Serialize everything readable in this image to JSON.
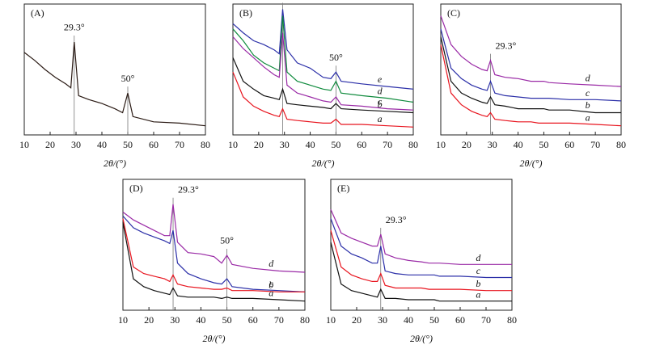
{
  "chart_data": [
    {
      "type": "line",
      "title": "(A)",
      "xlabel": "2θ/(°)",
      "xlim": [
        10,
        80
      ],
      "xticks": [
        10,
        20,
        30,
        40,
        50,
        60,
        70,
        80
      ],
      "ylim": [
        0,
        100
      ],
      "x": [
        10,
        14,
        18,
        22,
        26,
        28,
        29.3,
        31,
        35,
        40,
        45,
        48,
        50,
        52,
        60,
        70,
        80
      ],
      "values": [
        63,
        57,
        50,
        44,
        39,
        36,
        71,
        30,
        27,
        24,
        20,
        17,
        32,
        14,
        10,
        9,
        7
      ],
      "color": "#2a1a14",
      "annotations": [
        {
          "text": "29.3°",
          "x": 29.3
        },
        {
          "text": "50°",
          "x": 50
        }
      ]
    },
    {
      "type": "line",
      "title": "(B)",
      "xlabel": "2θ/(°)",
      "xlim": [
        10,
        80
      ],
      "xticks": [
        10,
        20,
        30,
        40,
        50,
        60,
        70,
        80
      ],
      "ylim": [
        0,
        100
      ],
      "x": [
        10,
        14,
        18,
        22,
        26,
        28,
        29.3,
        31,
        35,
        40,
        45,
        48,
        50,
        52,
        60,
        70,
        80
      ],
      "series": [
        {
          "name": "e",
          "color": "#2b2fa8",
          "values": [
            85,
            78,
            72,
            69,
            65,
            62,
            96,
            65,
            55,
            51,
            44,
            43,
            48,
            41,
            39,
            37,
            35
          ]
        },
        {
          "name": "d",
          "color": "#0e8a3c",
          "values": [
            81,
            72,
            61,
            55,
            51,
            49,
            91,
            48,
            41,
            38,
            35,
            34,
            41,
            32,
            30,
            28,
            25
          ]
        },
        {
          "name": "c",
          "color": "#9a2aa6",
          "values": [
            75,
            66,
            59,
            52,
            46,
            44,
            78,
            38,
            32,
            29,
            26,
            25,
            29,
            23,
            22,
            20,
            19
          ]
        },
        {
          "name": "b",
          "color": "#111111",
          "values": [
            59,
            41,
            35,
            30,
            28,
            27,
            35,
            24,
            23,
            22,
            21,
            20,
            24,
            20,
            19,
            18,
            17
          ]
        },
        {
          "name": "a",
          "color": "#e8141e",
          "values": [
            48,
            29,
            22,
            18,
            15,
            14,
            20,
            12,
            11,
            10,
            9,
            9,
            12,
            8,
            8,
            7,
            6
          ]
        }
      ],
      "annotations": [
        {
          "text": "29.3°",
          "x": 29.3
        },
        {
          "text": "50°",
          "x": 50
        }
      ]
    },
    {
      "type": "line",
      "title": "(C)",
      "xlabel": "2θ/(°)",
      "xlim": [
        10,
        80
      ],
      "xticks": [
        10,
        20,
        30,
        40,
        50,
        60,
        70,
        80
      ],
      "ylim": [
        0,
        100
      ],
      "x": [
        10,
        14,
        18,
        22,
        26,
        28,
        29.3,
        31,
        35,
        40,
        45,
        48,
        50,
        52,
        60,
        70,
        80
      ],
      "series": [
        {
          "name": "d",
          "color": "#9a2aa6",
          "values": [
            91,
            69,
            60,
            54,
            50,
            49,
            57,
            46,
            44,
            43,
            41,
            41,
            41,
            40,
            39,
            38,
            37
          ]
        },
        {
          "name": "c",
          "color": "#2b2fa8",
          "values": [
            81,
            51,
            43,
            38,
            35,
            34,
            41,
            32,
            30,
            29,
            28,
            28,
            28,
            28,
            27,
            27,
            26
          ]
        },
        {
          "name": "b",
          "color": "#111111",
          "values": [
            75,
            41,
            32,
            28,
            25,
            24,
            29,
            23,
            22,
            20,
            20,
            20,
            20,
            19,
            19,
            17,
            17
          ]
        },
        {
          "name": "a",
          "color": "#e8141e",
          "values": [
            69,
            32,
            23,
            18,
            15,
            14,
            17,
            12,
            11,
            10,
            10,
            9,
            9,
            9,
            9,
            8,
            7
          ]
        }
      ],
      "annotations": [
        {
          "text": "29.3°",
          "x": 29.3
        }
      ]
    },
    {
      "type": "line",
      "title": "(D)",
      "xlabel": "2θ/(°)",
      "xlim": [
        10,
        80
      ],
      "xticks": [
        10,
        20,
        30,
        40,
        50,
        60,
        70,
        80
      ],
      "ylim": [
        0,
        100
      ],
      "x": [
        10,
        14,
        18,
        22,
        26,
        28,
        29.3,
        31,
        35,
        40,
        45,
        48,
        50,
        52,
        60,
        70,
        80
      ],
      "series": [
        {
          "name": "d",
          "color": "#9a2aa6",
          "values": [
            75,
            69,
            65,
            61,
            57,
            57,
            81,
            52,
            44,
            43,
            41,
            36,
            42,
            35,
            32,
            30,
            29
          ]
        },
        {
          "name": "c",
          "color": "#2b2fa8",
          "values": [
            72,
            63,
            59,
            56,
            53,
            51,
            61,
            36,
            28,
            24,
            21,
            20,
            24,
            18,
            16,
            15,
            14
          ]
        },
        {
          "name": "b",
          "color": "#e8141e",
          "values": [
            70,
            33,
            28,
            26,
            24,
            22,
            27,
            20,
            18,
            17,
            16,
            16,
            17,
            15,
            15,
            14,
            14
          ]
        },
        {
          "name": "a",
          "color": "#111111",
          "values": [
            67,
            24,
            18,
            15,
            13,
            12,
            17,
            11,
            10,
            10,
            10,
            9,
            10,
            9,
            9,
            8,
            7
          ]
        }
      ],
      "annotations": [
        {
          "text": "29.3°",
          "x": 29.3
        },
        {
          "text": "50°",
          "x": 50
        }
      ]
    },
    {
      "type": "line",
      "title": "(E)",
      "xlabel": "2θ/(°)",
      "xlim": [
        10,
        80
      ],
      "xticks": [
        10,
        20,
        30,
        40,
        50,
        60,
        70,
        80
      ],
      "ylim": [
        0,
        100
      ],
      "x": [
        10,
        14,
        18,
        22,
        26,
        28,
        29.3,
        31,
        35,
        40,
        45,
        48,
        50,
        52,
        60,
        70,
        80
      ],
      "series": [
        {
          "name": "d",
          "color": "#9a2aa6",
          "values": [
            77,
            59,
            55,
            52,
            49,
            49,
            58,
            43,
            40,
            38,
            37,
            36,
            36,
            36,
            35,
            35,
            35
          ]
        },
        {
          "name": "c",
          "color": "#2b2fa8",
          "values": [
            70,
            49,
            43,
            40,
            36,
            36,
            49,
            30,
            28,
            27,
            27,
            27,
            27,
            26,
            26,
            25,
            25
          ]
        },
        {
          "name": "b",
          "color": "#e8141e",
          "values": [
            61,
            33,
            27,
            24,
            22,
            22,
            28,
            19,
            17,
            17,
            17,
            16,
            16,
            16,
            16,
            15,
            15
          ]
        },
        {
          "name": "a",
          "color": "#111111",
          "values": [
            52,
            20,
            15,
            13,
            11,
            10,
            16,
            9,
            9,
            8,
            8,
            8,
            8,
            7,
            7,
            7,
            7
          ]
        }
      ],
      "annotations": [
        {
          "text": "29.3°",
          "x": 29.3
        }
      ]
    }
  ]
}
